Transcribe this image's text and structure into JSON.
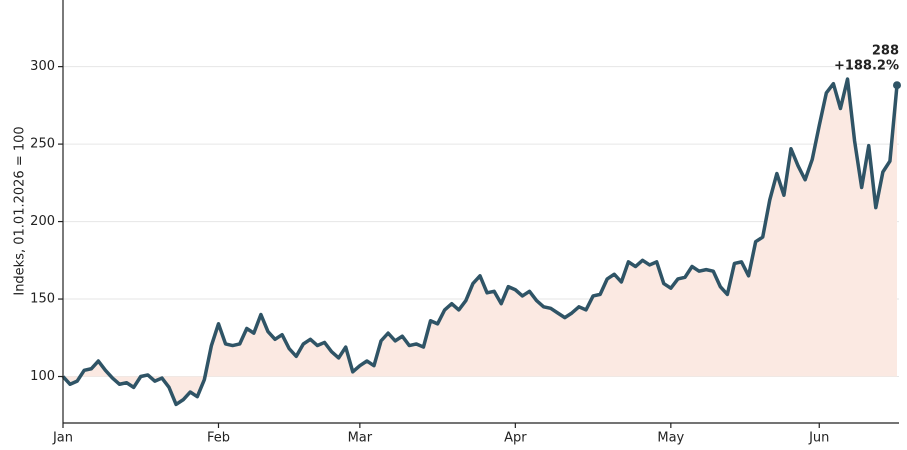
{
  "chart_data": {
    "type": "line",
    "y_label": "Indeks, 01.01.2026 = 100",
    "baseline": 100,
    "annotations": [
      "288",
      "+188.2%"
    ],
    "categories": [
      "Jan",
      null,
      null,
      null,
      null,
      null,
      null,
      null,
      null,
      null,
      null,
      null,
      null,
      null,
      null,
      null,
      null,
      null,
      null,
      null,
      null,
      null,
      "Feb",
      null,
      null,
      null,
      null,
      null,
      null,
      null,
      null,
      null,
      null,
      null,
      null,
      null,
      null,
      null,
      null,
      null,
      null,
      null,
      "Mar",
      null,
      null,
      null,
      null,
      null,
      null,
      null,
      null,
      null,
      null,
      null,
      null,
      null,
      null,
      null,
      null,
      null,
      null,
      null,
      null,
      null,
      "Apr",
      null,
      null,
      null,
      null,
      null,
      null,
      null,
      null,
      null,
      null,
      null,
      null,
      null,
      null,
      null,
      null,
      null,
      null,
      null,
      null,
      null,
      "May",
      null,
      null,
      null,
      null,
      null,
      null,
      null,
      null,
      null,
      null,
      null,
      null,
      null,
      null,
      null,
      null,
      null,
      null,
      null,
      null,
      "Jun",
      null,
      null,
      null,
      null,
      null,
      null,
      null,
      null,
      null,
      null,
      null
    ],
    "series": [
      {
        "color": "#2f5466",
        "fill": "#fbe9e2",
        "values": [
          100,
          95,
          97,
          104,
          105,
          110,
          104,
          99,
          95,
          96,
          93,
          100,
          101,
          97,
          99,
          93,
          82,
          85,
          90,
          87,
          98,
          120,
          134,
          121,
          120,
          121,
          131,
          128,
          140,
          129,
          124,
          127,
          118,
          113,
          121,
          124,
          120,
          122,
          116,
          112,
          119,
          103,
          107,
          110,
          107,
          123,
          128,
          123,
          126,
          120,
          121,
          119,
          136,
          134,
          143,
          147,
          143,
          149,
          160,
          165,
          154,
          155,
          147,
          158,
          156,
          152,
          155,
          149,
          145,
          144,
          141,
          138,
          141,
          145,
          143,
          152,
          153,
          163,
          166,
          161,
          174,
          171,
          175,
          172,
          174,
          160,
          157,
          163,
          164,
          171,
          168,
          169,
          168,
          158,
          153,
          173,
          174,
          165,
          187,
          190,
          214,
          231,
          217,
          247,
          236,
          227,
          240,
          262,
          283,
          289,
          273,
          292,
          252,
          222,
          249,
          209,
          232,
          239,
          288
        ]
      }
    ],
    "ylim": [
      70,
      343
    ],
    "yticks": [
      100,
      150,
      200,
      250,
      300
    ],
    "grid": true
  }
}
